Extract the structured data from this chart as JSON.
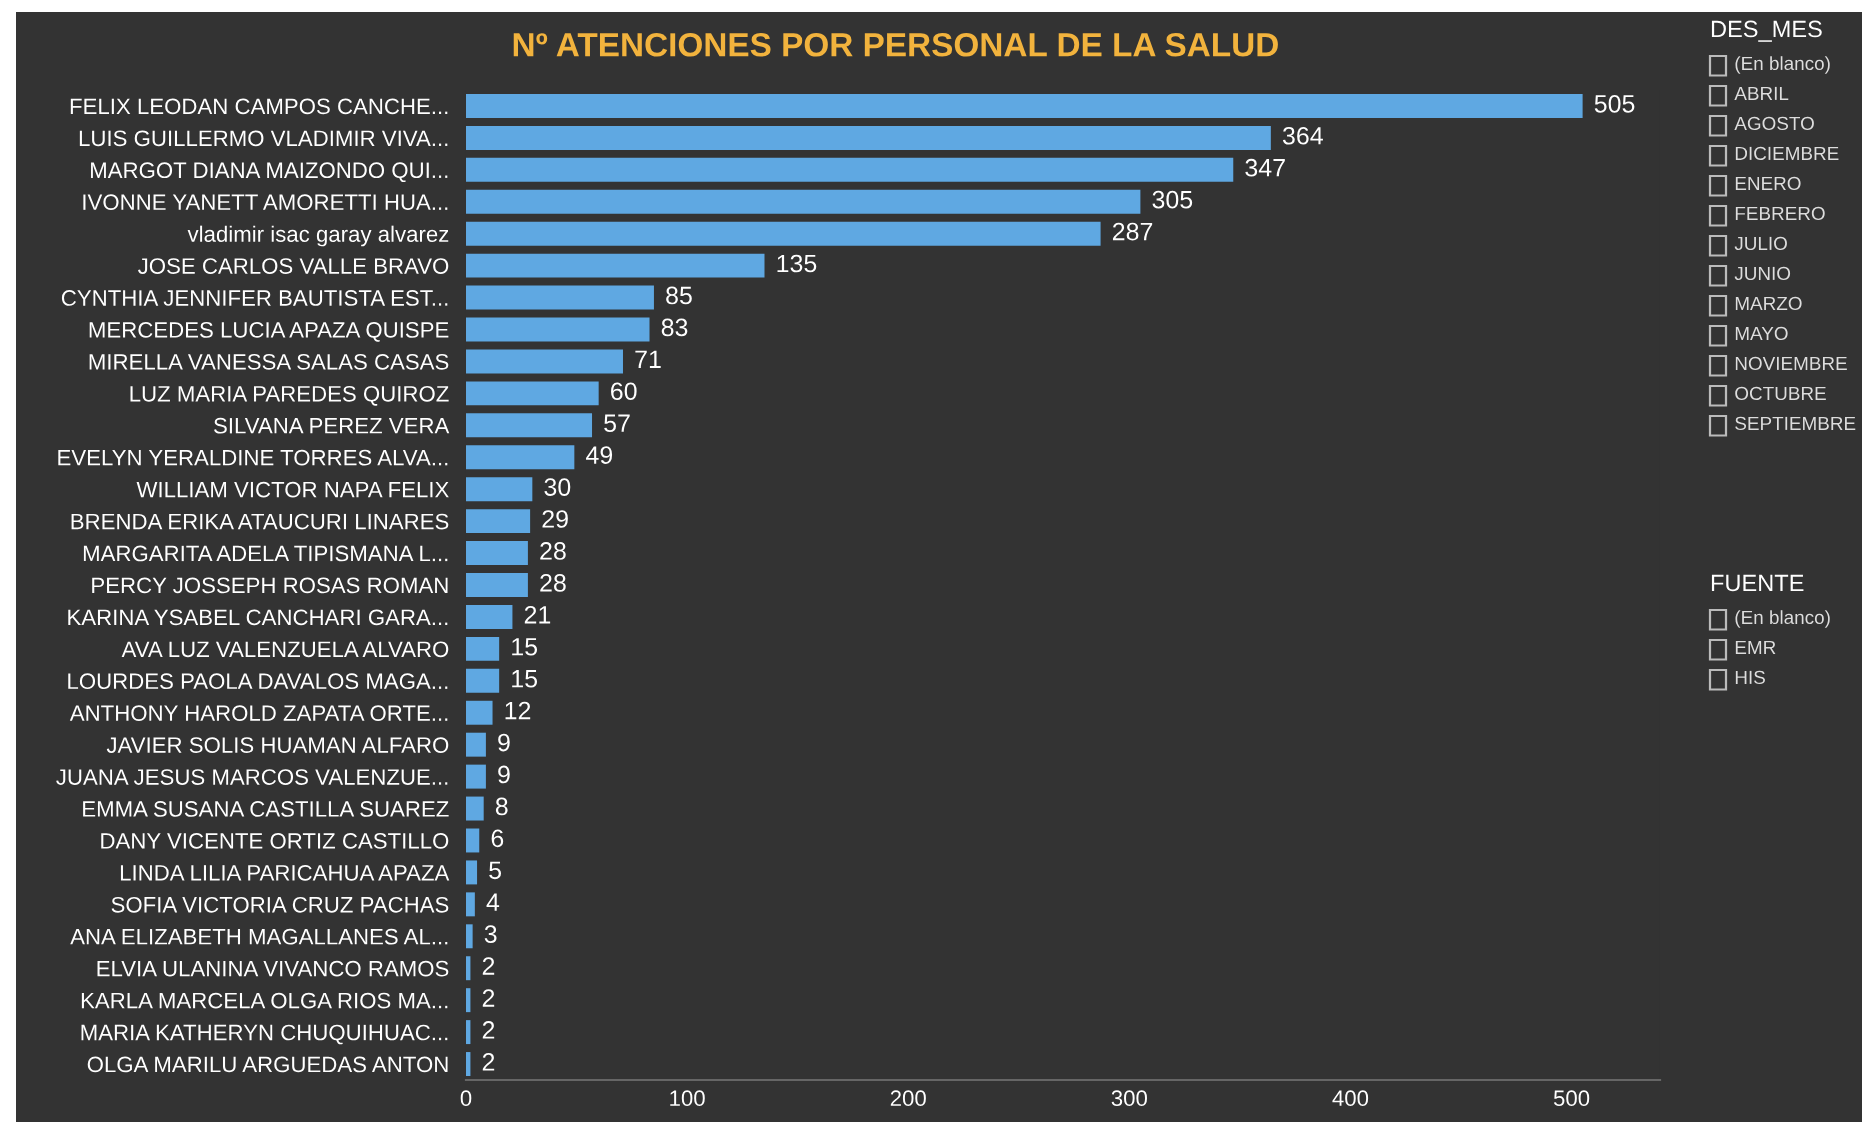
{
  "chart_data": [
    {
      "type": "bar",
      "orientation": "horizontal",
      "title": "Nº ATENCIONES POR PERSONAL DE LA SALUD",
      "color": "#5fa8e2",
      "data_labels": true,
      "grid": false,
      "legend": false,
      "xlim": [
        0,
        540
      ],
      "xticks": [
        0,
        100,
        200,
        300,
        400,
        500
      ],
      "categories": [
        "FELIX LEODAN CAMPOS CANCHE...",
        "LUIS GUILLERMO VLADIMIR VIVA...",
        "MARGOT DIANA MAIZONDO QUI...",
        "IVONNE YANETT AMORETTI HUA...",
        "vladimir isac garay alvarez",
        "JOSE CARLOS VALLE BRAVO",
        "CYNTHIA JENNIFER BAUTISTA EST...",
        "MERCEDES LUCIA APAZA QUISPE",
        "MIRELLA VANESSA SALAS CASAS",
        "LUZ MARIA PAREDES QUIROZ",
        "SILVANA PEREZ VERA",
        "EVELYN YERALDINE TORRES ALVA...",
        "WILLIAM VICTOR NAPA FELIX",
        "BRENDA ERIKA ATAUCURI LINARES",
        "MARGARITA ADELA TIPISMANA L...",
        "PERCY JOSSEPH ROSAS ROMAN",
        "KARINA YSABEL CANCHARI GARA...",
        "AVA LUZ VALENZUELA ALVARO",
        "LOURDES PAOLA DAVALOS MAGA...",
        "ANTHONY HAROLD ZAPATA ORTE...",
        "JAVIER SOLIS HUAMAN ALFARO",
        "JUANA JESUS MARCOS VALENZUE...",
        "EMMA SUSANA CASTILLA SUAREZ",
        "DANY VICENTE ORTIZ CASTILLO",
        "LINDA LILIA PARICAHUA APAZA",
        "SOFIA VICTORIA CRUZ PACHAS",
        "ANA ELIZABETH MAGALLANES AL...",
        "ELVIA ULANINA VIVANCO RAMOS",
        "KARLA MARCELA OLGA RIOS MA...",
        "MARIA KATHERYN CHUQUIHUAC...",
        "OLGA MARILU ARGUEDAS ANTON"
      ],
      "values": [
        505,
        364,
        347,
        305,
        287,
        135,
        85,
        83,
        71,
        60,
        57,
        49,
        30,
        29,
        28,
        28,
        21,
        15,
        15,
        12,
        9,
        9,
        8,
        6,
        5,
        4,
        3,
        2,
        2,
        2,
        2
      ]
    },
    {
      "type": "other",
      "title": "DES_MES",
      "annotations": [
        "(En blanco)",
        "ABRIL",
        "AGOSTO",
        "DICIEMBRE",
        "ENERO",
        "FEBRERO",
        "JULIO",
        "JUNIO",
        "MARZO",
        "MAYO",
        "NOVIEMBRE",
        "OCTUBRE",
        "SEPTIEMBRE"
      ]
    },
    {
      "type": "other",
      "title": "FUENTE",
      "annotations": [
        "(En blanco)",
        "EMR",
        "HIS"
      ]
    }
  ]
}
